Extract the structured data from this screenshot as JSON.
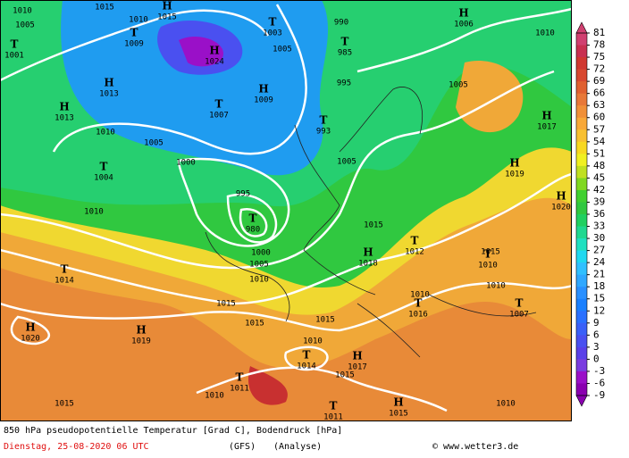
{
  "map": {
    "caption": "850 hPa pseudopotentielle Temperatur [Grad C], Bodendruck [hPa]",
    "date": "Dienstag, 25-08-2020  06 UTC",
    "model": "(GFS)",
    "run": "(Analyse)",
    "credit": "© www.wetter3.de",
    "colorbar": {
      "ticks": [
        81,
        78,
        75,
        72,
        69,
        66,
        63,
        60,
        57,
        54,
        51,
        48,
        45,
        42,
        39,
        36,
        33,
        30,
        27,
        24,
        21,
        18,
        15,
        12,
        9,
        6,
        3,
        0,
        -3,
        -6,
        -9
      ],
      "colors": [
        "#d04070",
        "#c83050",
        "#d03830",
        "#d84830",
        "#e06030",
        "#e87838",
        "#f09038",
        "#f8a838",
        "#f8c030",
        "#f8d820",
        "#f0f020",
        "#c0e020",
        "#80d820",
        "#40d030",
        "#30c840",
        "#20d060",
        "#20d890",
        "#20e0c0",
        "#20d8f0",
        "#30c0ff",
        "#30a8ff",
        "#2a90ff",
        "#1a80ff",
        "#2a70ff",
        "#3a60f8",
        "#4a50f0",
        "#5a40e8",
        "#7a3ce0",
        "#9a10c8",
        "#8a00b0"
      ]
    },
    "centers": [
      {
        "type": "H",
        "value": 1015
      },
      {
        "type": "T",
        "value": 1003
      },
      {
        "type": "T",
        "value": 1009
      },
      {
        "type": "T",
        "value": 1001
      },
      {
        "type": "H",
        "value": 1024
      },
      {
        "type": "H",
        "value": 1013
      },
      {
        "type": "H",
        "value": 1013
      },
      {
        "type": "H",
        "value": 1009
      },
      {
        "type": "T",
        "value": 1007
      },
      {
        "type": "T",
        "value": 993
      },
      {
        "type": "T",
        "value": 985
      },
      {
        "type": "H",
        "value": 1006
      },
      {
        "type": "H",
        "value": 1017
      },
      {
        "type": "H",
        "value": 1019
      },
      {
        "type": "T",
        "value": 1004
      },
      {
        "type": "T",
        "value": 980
      },
      {
        "type": "H",
        "value": 1020
      },
      {
        "type": "T",
        "value": 1012
      },
      {
        "type": "H",
        "value": 1018
      },
      {
        "type": "T",
        "value": 1010
      },
      {
        "type": "T",
        "value": 1014
      },
      {
        "type": "T",
        "value": 1016
      },
      {
        "type": "T",
        "value": 1007
      },
      {
        "type": "H",
        "value": 1020
      },
      {
        "type": "H",
        "value": 1019
      },
      {
        "type": "T",
        "value": 1014
      },
      {
        "type": "H",
        "value": 1017
      },
      {
        "type": "T",
        "value": 1011
      },
      {
        "type": "T",
        "value": 1011
      },
      {
        "type": "H",
        "value": 1015
      }
    ],
    "isobar_labels": [
      1010,
      1005,
      1015,
      1010,
      990,
      1005,
      1010,
      1005,
      1000,
      995,
      1005,
      1010,
      1010,
      1000,
      1005,
      1010,
      1015,
      1015,
      1015,
      1010,
      1010,
      1015,
      1010,
      1015,
      1015,
      1010,
      1010,
      1015,
      995,
      1005
    ]
  }
}
